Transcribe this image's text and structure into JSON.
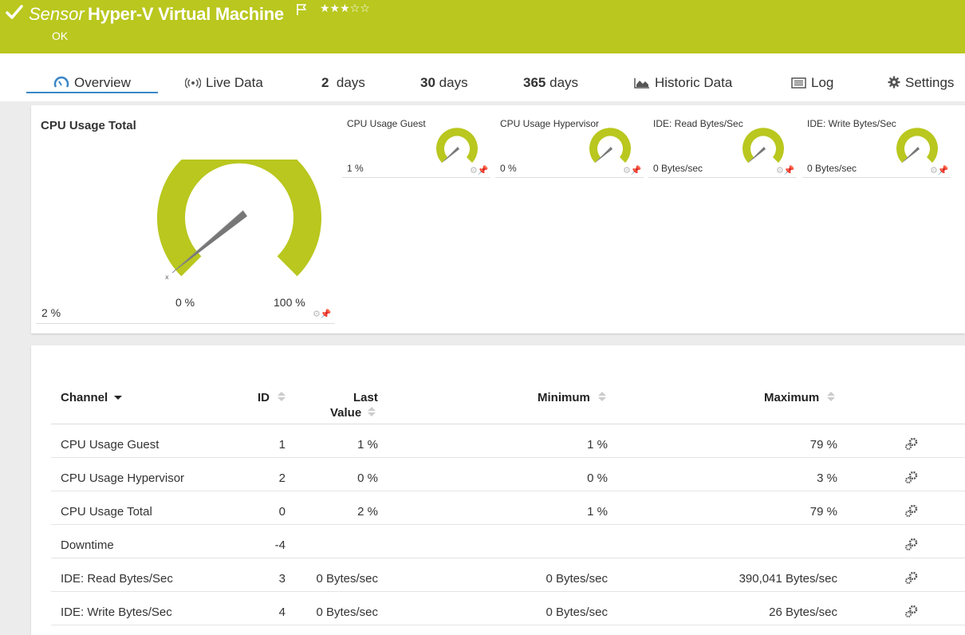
{
  "header": {
    "sensor_type": "Sensor",
    "sensor_name": "Hyper-V Virtual Machine",
    "stars": "★★★☆☆",
    "status": "OK",
    "color": "#b9c71e"
  },
  "tabs": {
    "overview": "Overview",
    "live_data": "Live Data",
    "days2_num": "2",
    "days30_num": "30",
    "days365_num": "365",
    "days_label": "days",
    "historic": "Historic Data",
    "log": "Log",
    "settings": "Settings"
  },
  "gauges": {
    "main": {
      "title": "CPU Usage Total",
      "value": "2 %",
      "min_label": "0 %",
      "max_label": "100 %"
    },
    "small": [
      {
        "title": "CPU Usage Guest",
        "value": "1 %"
      },
      {
        "title": "CPU Usage Hypervisor",
        "value": "0 %"
      },
      {
        "title": "IDE: Read Bytes/Sec",
        "value": "0 Bytes/sec"
      },
      {
        "title": "IDE: Write Bytes/Sec",
        "value": "0 Bytes/sec"
      }
    ]
  },
  "table": {
    "headers": {
      "channel": "Channel",
      "id": "ID",
      "last_line1": "Last",
      "last_line2": "Value",
      "minimum": "Minimum",
      "maximum": "Maximum"
    },
    "rows": [
      {
        "channel": "CPU Usage Guest",
        "id": "1",
        "last": "1 %",
        "min": "1 %",
        "max": "79 %"
      },
      {
        "channel": "CPU Usage Hypervisor",
        "id": "2",
        "last": "0 %",
        "min": "0 %",
        "max": "3 %"
      },
      {
        "channel": "CPU Usage Total",
        "id": "0",
        "last": "2 %",
        "min": "1 %",
        "max": "79 %"
      },
      {
        "channel": "Downtime",
        "id": "-4",
        "last": "",
        "min": "",
        "max": ""
      },
      {
        "channel": "IDE: Read Bytes/Sec",
        "id": "3",
        "last": "0 Bytes/sec",
        "min": "0 Bytes/sec",
        "max": "390,041 Bytes/sec"
      },
      {
        "channel": "IDE: Write Bytes/Sec",
        "id": "4",
        "last": "0 Bytes/sec",
        "min": "0 Bytes/sec",
        "max": "26 Bytes/sec"
      }
    ]
  }
}
